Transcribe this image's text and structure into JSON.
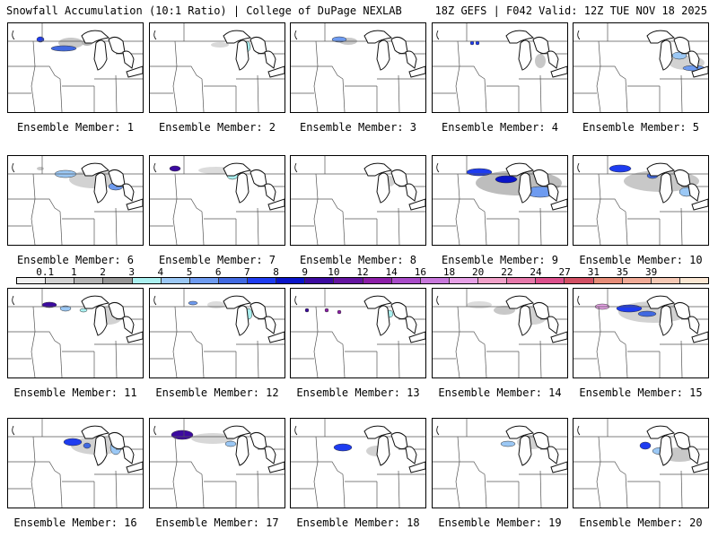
{
  "header": {
    "title_left": "Snowfall Accumulation (10:1 Ratio) | College of DuPage NEXLAB",
    "title_right": "18Z GEFS | F042 Valid: 12Z TUE NOV 18 2025"
  },
  "panels": [
    {
      "label": "Ensemble Member: 1"
    },
    {
      "label": "Ensemble Member: 2"
    },
    {
      "label": "Ensemble Member: 3"
    },
    {
      "label": "Ensemble Member: 4"
    },
    {
      "label": "Ensemble Member: 5"
    },
    {
      "label": "Ensemble Member: 6"
    },
    {
      "label": "Ensemble Member: 7"
    },
    {
      "label": "Ensemble Member: 8"
    },
    {
      "label": "Ensemble Member: 9"
    },
    {
      "label": "Ensemble Member: 10"
    },
    {
      "label": "Ensemble Member: 11"
    },
    {
      "label": "Ensemble Member: 12"
    },
    {
      "label": "Ensemble Member: 13"
    },
    {
      "label": "Ensemble Member: 14"
    },
    {
      "label": "Ensemble Member: 15"
    },
    {
      "label": "Ensemble Member: 16"
    },
    {
      "label": "Ensemble Member: 17"
    },
    {
      "label": "Ensemble Member: 18"
    },
    {
      "label": "Ensemble Member: 19"
    },
    {
      "label": "Ensemble Member: 20"
    }
  ],
  "legend": {
    "values": [
      "0.1",
      "1",
      "2",
      "3",
      "4",
      "5",
      "6",
      "7",
      "8",
      "9",
      "10",
      "12",
      "14",
      "16",
      "18",
      "20",
      "22",
      "24",
      "27",
      "31",
      "35",
      "39"
    ],
    "colors": [
      "#f0f0f0",
      "#d2d2d2",
      "#b4b4b4",
      "#969696",
      "#aaf0f0",
      "#9bc8f5",
      "#6e9bf0",
      "#4169e1",
      "#1e3cf0",
      "#0a14c8",
      "#3c0aa0",
      "#6414a0",
      "#8c1ea8",
      "#a84bc8",
      "#c878dc",
      "#e6a0e6",
      "#f0a0c8",
      "#e678aa",
      "#dc508c",
      "#d25064",
      "#e68c78",
      "#f0aa96",
      "#f5c8b4",
      "#fae6d2"
    ]
  }
}
